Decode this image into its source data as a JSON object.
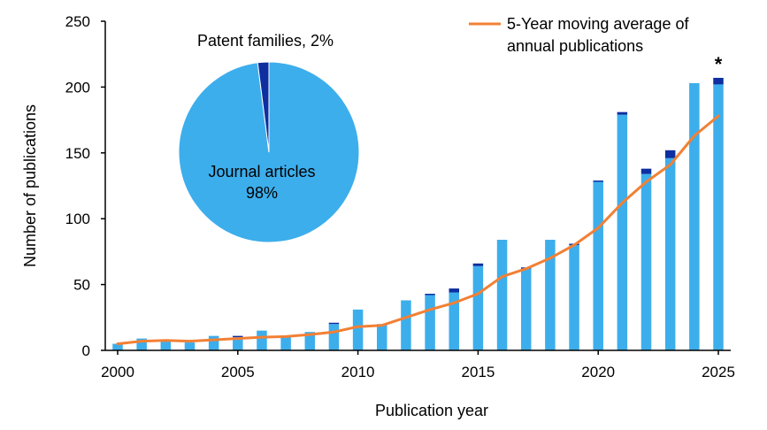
{
  "colors": {
    "journal": "#3DAEEC",
    "patent": "#0D2FA0",
    "moving_average": "#F28034",
    "axis": "#000000"
  },
  "chart_data": [
    {
      "type": "bar",
      "stacked": true,
      "title": "",
      "xlabel": "Publication year",
      "ylabel": "Number of publications",
      "ylim": [
        0,
        250
      ],
      "yticks": [
        "0",
        "50",
        "100",
        "150",
        "200",
        "250"
      ],
      "xlim": [
        2000,
        2025
      ],
      "xticks": [
        "2000",
        "2005",
        "2010",
        "2015",
        "2020",
        "2025"
      ],
      "categories": [
        2000,
        2001,
        2002,
        2003,
        2004,
        2005,
        2006,
        2007,
        2008,
        2009,
        2010,
        2011,
        2012,
        2013,
        2014,
        2015,
        2016,
        2017,
        2018,
        2019,
        2020,
        2021,
        2022,
        2023,
        2024,
        2025
      ],
      "series": [
        {
          "values": [
            5,
            9,
            7,
            6,
            11,
            10,
            15,
            10,
            14,
            20,
            31,
            20,
            38,
            42,
            44,
            64,
            84,
            62,
            84,
            80,
            128,
            179,
            134,
            146,
            203,
            202
          ]
        },
        {
          "values": [
            0,
            0,
            0,
            0,
            0,
            1,
            0,
            0,
            0,
            1,
            0,
            0,
            0,
            1,
            3,
            2,
            0,
            1,
            0,
            1,
            1,
            2,
            4,
            6,
            0,
            5
          ]
        }
      ],
      "line_series": {
        "name": "5-Year moving average of annual publications",
        "legend_line1": "5-Year moving average of",
        "legend_line2": "annual publications",
        "x": [
          2000,
          2001,
          2002,
          2003,
          2004,
          2005,
          2006,
          2007,
          2008,
          2009,
          2010,
          2011,
          2012,
          2013,
          2014,
          2015,
          2016,
          2017,
          2018,
          2019,
          2020,
          2021,
          2022,
          2023,
          2024,
          2025
        ],
        "values": [
          5,
          7,
          7.5,
          7,
          8,
          9,
          10,
          10.5,
          12,
          14,
          18,
          19,
          25,
          31,
          36,
          43,
          56,
          62,
          70,
          80,
          93,
          112,
          128,
          141,
          163,
          178
        ]
      },
      "annotation": {
        "text": "*",
        "x": 2025
      },
      "legend_placement": "top-right",
      "grid": false
    },
    {
      "type": "pie",
      "slices": [
        {
          "label_line1": "Journal articles",
          "label_line2": "98%",
          "value": 98
        },
        {
          "label": "Patent families, 2%",
          "value": 2
        }
      ]
    }
  ]
}
